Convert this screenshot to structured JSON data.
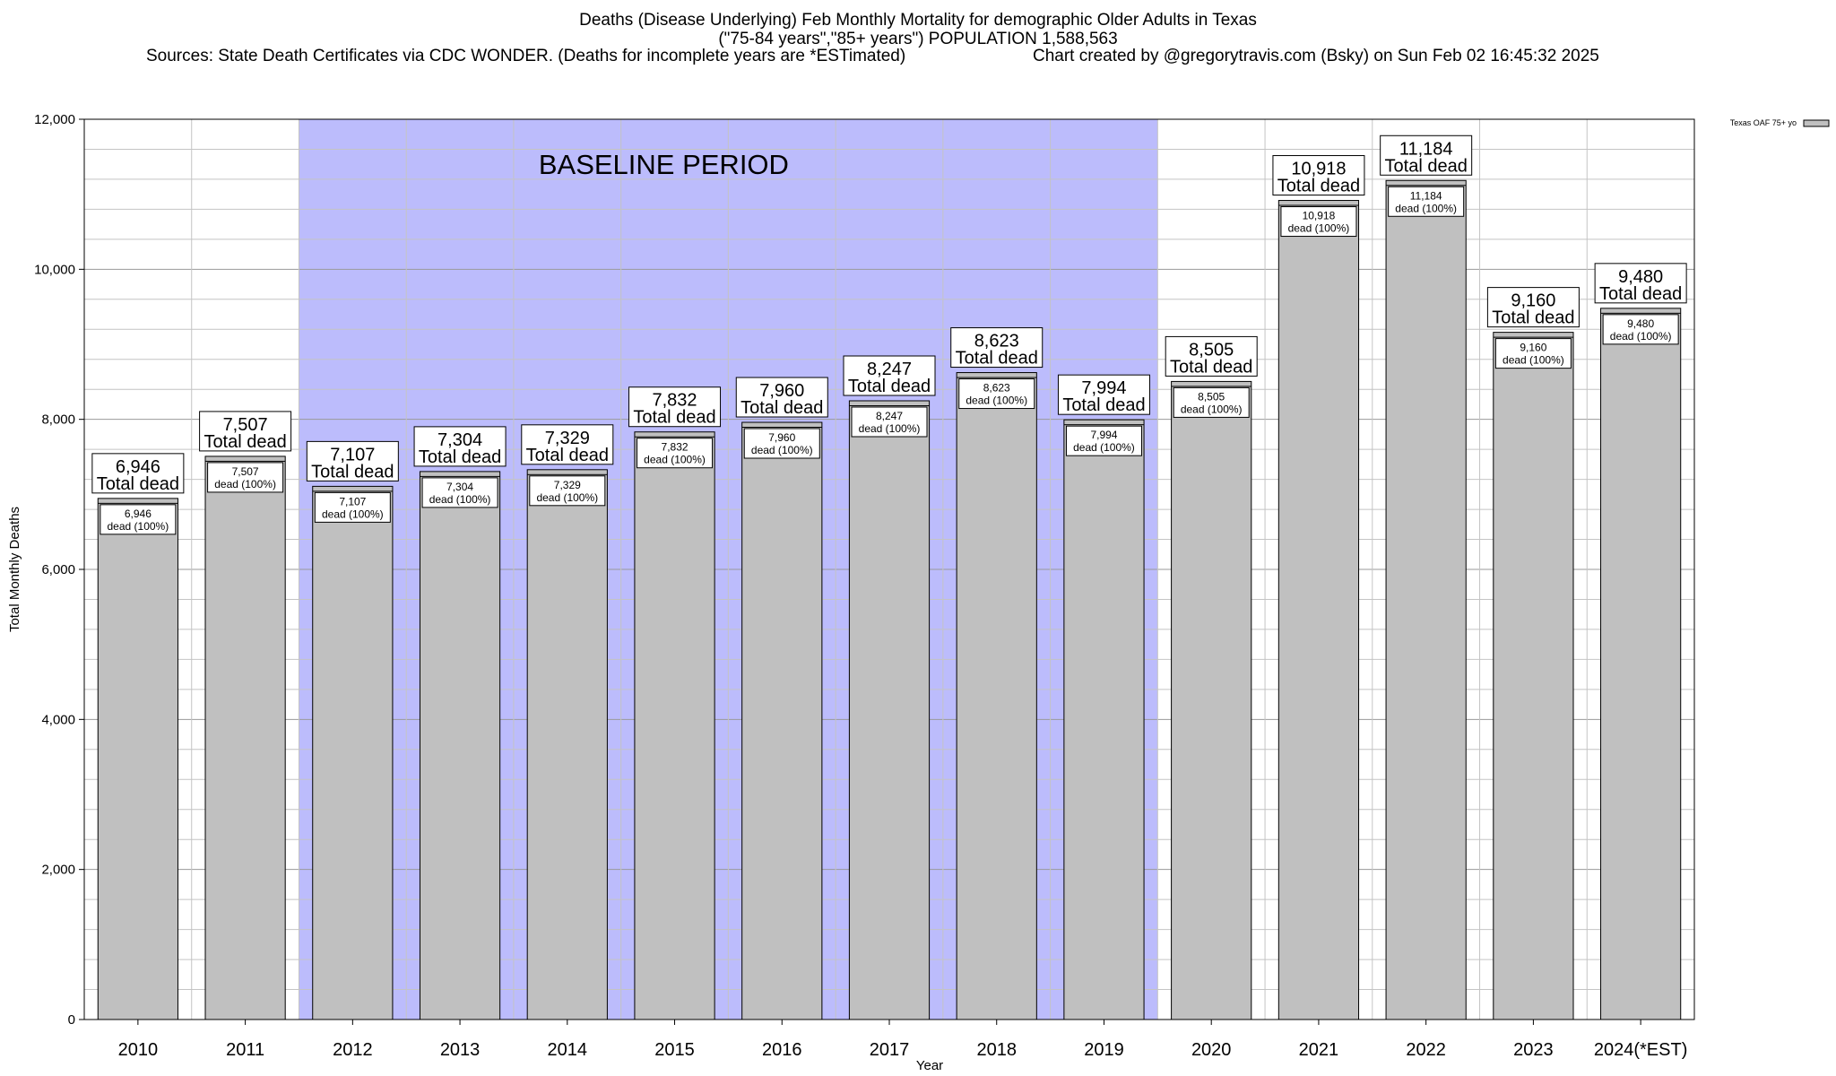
{
  "chart_data": {
    "type": "bar",
    "title": "Deaths (Disease Underlying) Feb Monthly Mortality for demographic Older Adults in Texas",
    "subtitle": "(\"75-84 years\",\"85+ years\") POPULATION 1,588,563",
    "sources": "Sources: State Death Certificates via CDC WONDER. (Deaths for incomplete years are *ESTimated)",
    "credit": "Chart created by @gregorytravis.com (Bsky) on Sun Feb 02 16:45:32 2025",
    "xlabel": "Year",
    "ylabel": "Total Monthly Deaths",
    "ylim": [
      0,
      12000
    ],
    "yticks": [
      0,
      2000,
      4000,
      6000,
      8000,
      10000,
      12000
    ],
    "ytick_labels": [
      "0",
      "2,000",
      "4,000",
      "6,000",
      "8,000",
      "10,000",
      "12,000"
    ],
    "categories": [
      "2010",
      "2011",
      "2012",
      "2013",
      "2014",
      "2015",
      "2016",
      "2017",
      "2018",
      "2019",
      "2020",
      "2021",
      "2022",
      "2023",
      "2024(*EST)"
    ],
    "values": [
      6946,
      7507,
      7107,
      7304,
      7329,
      7832,
      7960,
      8247,
      8623,
      7994,
      8505,
      10918,
      11184,
      9160,
      9480
    ],
    "value_labels": [
      "6,946",
      "7,507",
      "7,107",
      "7,304",
      "7,329",
      "7,832",
      "7,960",
      "8,247",
      "8,623",
      "7,994",
      "8,505",
      "10,918",
      "11,184",
      "9,160",
      "9,480"
    ],
    "total_suffix": "Total dead",
    "inner_suffix": "dead (100%)",
    "series": [
      {
        "name": "Texas OAF 75+ yo",
        "values": [
          6946,
          7507,
          7107,
          7304,
          7329,
          7832,
          7960,
          8247,
          8623,
          7994,
          8505,
          10918,
          11184,
          9160,
          9480
        ]
      }
    ],
    "baseline": {
      "label": "BASELINE PERIOD",
      "start": "2012",
      "end": "2019",
      "color": "#bcbcfc"
    },
    "bar_color": "#c0c0c0",
    "grid": true,
    "legend_position": "top-right"
  }
}
